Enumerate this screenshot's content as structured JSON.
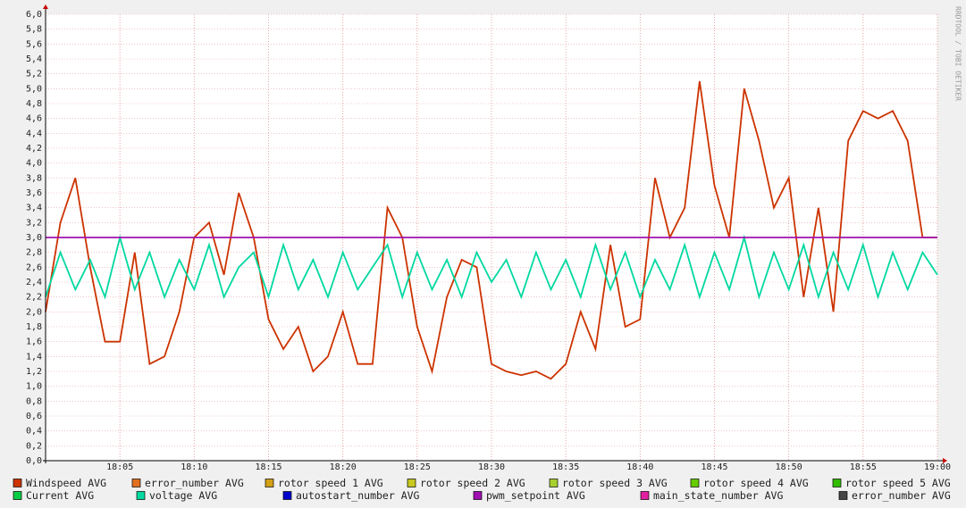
{
  "chart_data": {
    "type": "line",
    "watermark": "RRDTOOL / TOBI OETIKER",
    "x": [
      "18:00",
      "18:01",
      "18:02",
      "18:03",
      "18:04",
      "18:05",
      "18:06",
      "18:07",
      "18:08",
      "18:09",
      "18:10",
      "18:11",
      "18:12",
      "18:13",
      "18:14",
      "18:15",
      "18:16",
      "18:17",
      "18:18",
      "18:19",
      "18:20",
      "18:21",
      "18:22",
      "18:23",
      "18:24",
      "18:25",
      "18:26",
      "18:27",
      "18:28",
      "18:29",
      "18:30",
      "18:31",
      "18:32",
      "18:33",
      "18:34",
      "18:35",
      "18:36",
      "18:37",
      "18:38",
      "18:39",
      "18:40",
      "18:41",
      "18:42",
      "18:43",
      "18:44",
      "18:45",
      "18:46",
      "18:47",
      "18:48",
      "18:49",
      "18:50",
      "18:51",
      "18:52",
      "18:53",
      "18:54",
      "18:55",
      "18:56",
      "18:57",
      "18:58",
      "18:59",
      "19:00"
    ],
    "xticks": [
      "18:05",
      "18:10",
      "18:15",
      "18:20",
      "18:25",
      "18:30",
      "18:35",
      "18:40",
      "18:45",
      "18:50",
      "18:55",
      "19:00"
    ],
    "ylim": [
      0,
      6
    ],
    "yticks": [
      {
        "value": 0,
        "label": "0,0"
      },
      {
        "value": 0.2,
        "label": "0,2"
      },
      {
        "value": 0.4,
        "label": "0,4"
      },
      {
        "value": 0.6,
        "label": "0,6"
      },
      {
        "value": 0.8,
        "label": "0,8"
      },
      {
        "value": 1,
        "label": "1,0"
      },
      {
        "value": 1.2,
        "label": "1,2"
      },
      {
        "value": 1.4,
        "label": "1,4"
      },
      {
        "value": 1.6,
        "label": "1,6"
      },
      {
        "value": 1.8,
        "label": "1,8"
      },
      {
        "value": 2,
        "label": "2,0"
      },
      {
        "value": 2.2,
        "label": "2,2"
      },
      {
        "value": 2.4,
        "label": "2,4"
      },
      {
        "value": 2.6,
        "label": "2,6"
      },
      {
        "value": 2.8,
        "label": "2,8"
      },
      {
        "value": 3,
        "label": "3,0"
      },
      {
        "value": 3.2,
        "label": "3,2"
      },
      {
        "value": 3.4,
        "label": "3,4"
      },
      {
        "value": 3.6,
        "label": "3,6"
      },
      {
        "value": 3.8,
        "label": "3,8"
      },
      {
        "value": 4,
        "label": "4,0"
      },
      {
        "value": 4.2,
        "label": "4,2"
      },
      {
        "value": 4.4,
        "label": "4,4"
      },
      {
        "value": 4.6,
        "label": "4,6"
      },
      {
        "value": 4.8,
        "label": "4,8"
      },
      {
        "value": 5,
        "label": "5,0"
      },
      {
        "value": 5.2,
        "label": "5,2"
      },
      {
        "value": 5.4,
        "label": "5,4"
      },
      {
        "value": 5.6,
        "label": "5,6"
      },
      {
        "value": 5.8,
        "label": "5,8"
      },
      {
        "value": 6,
        "label": "6,0"
      }
    ],
    "grid": true,
    "series": [
      {
        "name": "Windspeed AVG",
        "color": "#cc3300",
        "values": [
          2.0,
          3.2,
          3.8,
          2.6,
          1.6,
          1.6,
          2.8,
          1.3,
          1.4,
          2.0,
          3.0,
          3.2,
          2.5,
          3.6,
          3.0,
          1.9,
          1.5,
          1.8,
          1.2,
          1.4,
          2.0,
          1.3,
          1.3,
          3.4,
          3.0,
          1.8,
          1.2,
          2.2,
          2.7,
          2.6,
          1.3,
          1.2,
          1.15,
          1.2,
          1.1,
          1.3,
          2.0,
          1.5,
          2.9,
          1.8,
          1.9,
          3.8,
          3.0,
          3.4,
          5.1,
          3.7,
          3.0,
          5.0,
          4.3,
          3.4,
          3.8,
          2.2,
          3.4,
          2.0,
          4.3,
          4.7,
          4.6,
          4.7,
          4.3,
          3.0,
          3.0
        ]
      },
      {
        "name": "error_number AVG",
        "color": "#e07020"
      },
      {
        "name": "rotor speed 1 AVG",
        "color": "#d4a017"
      },
      {
        "name": "rotor speed 2 AVG",
        "color": "#c8c820"
      },
      {
        "name": "rotor speed 3 AVG",
        "color": "#a8d030"
      },
      {
        "name": "rotor speed 4 AVG",
        "color": "#66cc00"
      },
      {
        "name": "rotor speed 5 AVG",
        "color": "#33bb00"
      },
      {
        "name": "Current AVG",
        "color": "#00cc44"
      },
      {
        "name": "voltage AVG",
        "color": "#00d8a0",
        "values": [
          2.2,
          2.8,
          2.3,
          2.7,
          2.2,
          3.0,
          2.3,
          2.8,
          2.2,
          2.7,
          2.3,
          2.9,
          2.2,
          2.6,
          2.8,
          2.2,
          2.9,
          2.3,
          2.7,
          2.2,
          2.8,
          2.3,
          2.6,
          2.9,
          2.2,
          2.8,
          2.3,
          2.7,
          2.2,
          2.8,
          2.4,
          2.7,
          2.2,
          2.8,
          2.3,
          2.7,
          2.2,
          2.9,
          2.3,
          2.8,
          2.2,
          2.7,
          2.3,
          2.9,
          2.2,
          2.8,
          2.3,
          3.0,
          2.2,
          2.8,
          2.3,
          2.9,
          2.2,
          2.8,
          2.3,
          2.9,
          2.2,
          2.8,
          2.3,
          2.8,
          2.5
        ]
      },
      {
        "name": "autostart_number AVG",
        "color": "#0000cc"
      },
      {
        "name": "pwm_setpoint AVG",
        "color": "#a010b0",
        "values": [
          3,
          3,
          3,
          3,
          3,
          3,
          3,
          3,
          3,
          3,
          3,
          3,
          3,
          3,
          3,
          3,
          3,
          3,
          3,
          3,
          3,
          3,
          3,
          3,
          3,
          3,
          3,
          3,
          3,
          3,
          3,
          3,
          3,
          3,
          3,
          3,
          3,
          3,
          3,
          3,
          3,
          3,
          3,
          3,
          3,
          3,
          3,
          3,
          3,
          3,
          3,
          3,
          3,
          3,
          3,
          3,
          3,
          3,
          3,
          3,
          3
        ]
      },
      {
        "name": "main_state_number AVG",
        "color": "#e020a0"
      },
      {
        "name": "error_number AVG",
        "color": "#444444"
      }
    ]
  }
}
